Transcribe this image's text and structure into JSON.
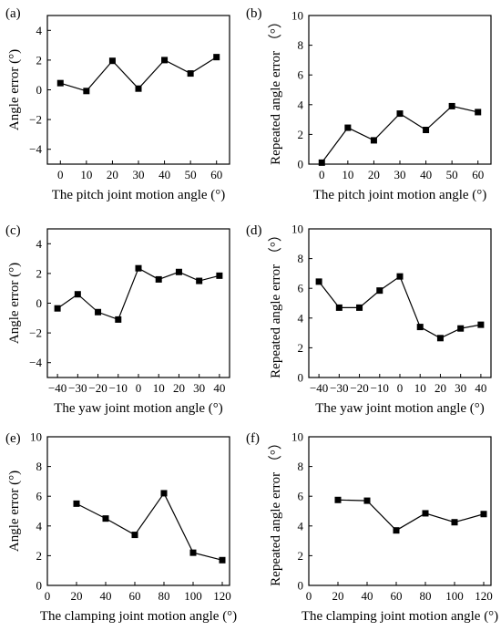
{
  "chart_data": [
    {
      "panel_label": "(a)",
      "type": "line",
      "xlabel": "The pitch joint motion angle (°)",
      "ylabel": "Angle error (°)",
      "x": [
        0,
        10,
        20,
        30,
        40,
        50,
        60
      ],
      "series": [
        {
          "values": [
            0.45,
            -0.08,
            1.95,
            0.08,
            2.0,
            1.1,
            2.2
          ]
        }
      ],
      "xlim": [
        -5,
        65
      ],
      "ylim": [
        -5,
        5
      ],
      "xticks": [
        0,
        10,
        20,
        30,
        40,
        50,
        60
      ],
      "yticks": [
        -4,
        -2,
        0,
        2,
        4
      ],
      "marker": "square",
      "grid": false
    },
    {
      "panel_label": "(b)",
      "type": "line",
      "xlabel": "The pitch joint motion angle (°)",
      "ylabel": "Repeated angle error （°）",
      "x": [
        0,
        10,
        20,
        30,
        40,
        50,
        60
      ],
      "series": [
        {
          "values": [
            0.1,
            2.45,
            1.6,
            3.4,
            2.3,
            3.9,
            3.5
          ]
        }
      ],
      "xlim": [
        -5,
        65
      ],
      "ylim": [
        0,
        10
      ],
      "xticks": [
        0,
        10,
        20,
        30,
        40,
        50,
        60
      ],
      "yticks": [
        0,
        2,
        4,
        6,
        8,
        10
      ],
      "marker": "square",
      "grid": false
    },
    {
      "panel_label": "(c)",
      "type": "line",
      "xlabel": "The yaw joint motion angle (°)",
      "ylabel": "Angle error (°)",
      "x": [
        -40,
        -30,
        -20,
        -10,
        0,
        10,
        20,
        30,
        40
      ],
      "series": [
        {
          "values": [
            -0.35,
            0.6,
            -0.6,
            -1.1,
            2.35,
            1.6,
            2.1,
            1.5,
            1.85
          ]
        }
      ],
      "xlim": [
        -45,
        45
      ],
      "ylim": [
        -5,
        5
      ],
      "xticks": [
        -40,
        -30,
        -20,
        -10,
        0,
        10,
        20,
        30,
        40
      ],
      "yticks": [
        -4,
        -2,
        0,
        2,
        4
      ],
      "marker": "square",
      "grid": false
    },
    {
      "panel_label": "(d)",
      "type": "line",
      "xlabel": "The yaw joint motion angle (°)",
      "ylabel": "Repeated angle error （°）",
      "x": [
        -40,
        -30,
        -20,
        -10,
        0,
        10,
        20,
        30,
        40
      ],
      "series": [
        {
          "values": [
            6.45,
            4.7,
            4.7,
            5.85,
            6.8,
            3.4,
            2.65,
            3.3,
            3.55
          ]
        }
      ],
      "xlim": [
        -45,
        45
      ],
      "ylim": [
        0,
        10
      ],
      "xticks": [
        -40,
        -30,
        -20,
        -10,
        0,
        10,
        20,
        30,
        40
      ],
      "yticks": [
        0,
        2,
        4,
        6,
        8,
        10
      ],
      "marker": "square",
      "grid": false
    },
    {
      "panel_label": "(e)",
      "type": "line",
      "xlabel": "The clamping joint motion angle (°)",
      "ylabel": "Angle error (°)",
      "x": [
        20,
        40,
        60,
        80,
        100,
        120
      ],
      "series": [
        {
          "values": [
            5.5,
            4.5,
            3.4,
            6.2,
            2.2,
            1.7
          ]
        }
      ],
      "xlim": [
        0,
        125
      ],
      "ylim": [
        0,
        10
      ],
      "xticks": [
        0,
        20,
        40,
        60,
        80,
        100,
        120
      ],
      "yticks": [
        0,
        2,
        4,
        6,
        8,
        10
      ],
      "marker": "square",
      "grid": false
    },
    {
      "panel_label": "(f)",
      "type": "line",
      "xlabel": "The clamping joint motion angle (°)",
      "ylabel": "Repeated angle error （°）",
      "x": [
        20,
        40,
        60,
        80,
        100,
        120
      ],
      "series": [
        {
          "values": [
            5.75,
            5.7,
            3.7,
            4.85,
            4.25,
            4.8
          ]
        }
      ],
      "xlim": [
        0,
        125
      ],
      "ylim": [
        0,
        10
      ],
      "xticks": [
        0,
        20,
        40,
        60,
        80,
        100,
        120
      ],
      "yticks": [
        0,
        2,
        4,
        6,
        8,
        10
      ],
      "marker": "square",
      "grid": false
    }
  ]
}
